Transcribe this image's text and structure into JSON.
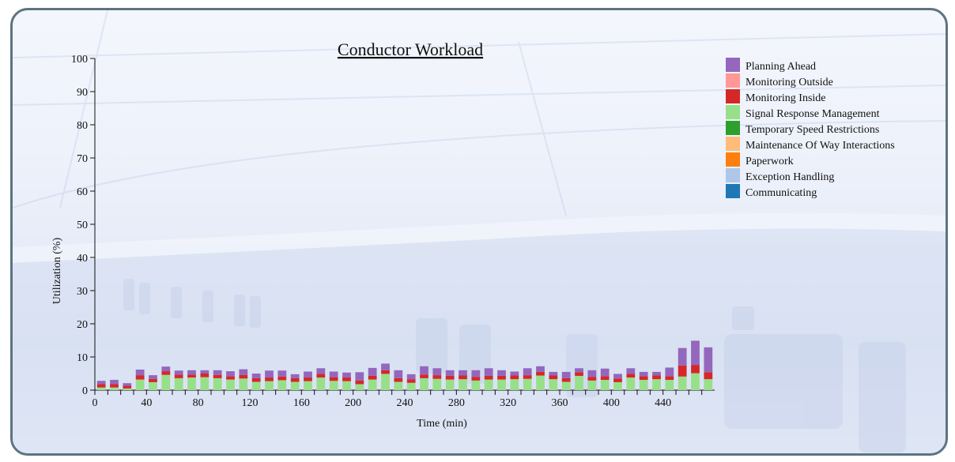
{
  "chart_data": {
    "type": "bar",
    "stacked": true,
    "title": "Conductor Workload",
    "xlabel": "Time (min)",
    "ylabel": "Utilization (%)",
    "ylim": [
      0,
      100
    ],
    "yticks": [
      0,
      10,
      20,
      30,
      40,
      50,
      60,
      70,
      80,
      90,
      100
    ],
    "xlim": [
      0,
      480
    ],
    "xticks": [
      0,
      40,
      80,
      120,
      160,
      200,
      240,
      280,
      320,
      360,
      400,
      440
    ],
    "bin_width_min": 10,
    "legend_position": "top-right",
    "x": [
      5,
      15,
      25,
      35,
      45,
      55,
      65,
      75,
      85,
      95,
      105,
      115,
      125,
      135,
      145,
      155,
      165,
      175,
      185,
      195,
      205,
      215,
      225,
      235,
      245,
      255,
      265,
      275,
      285,
      295,
      305,
      315,
      325,
      335,
      345,
      355,
      365,
      375,
      385,
      395,
      405,
      415,
      425,
      435,
      445,
      455,
      465,
      475
    ],
    "series": [
      {
        "name": "Communicating",
        "color": "#1f77b4",
        "values": [
          0,
          0,
          0,
          0,
          0,
          0,
          0,
          0,
          0,
          0,
          0,
          0,
          0,
          0,
          0,
          0,
          0,
          0,
          0,
          0,
          0,
          0,
          0,
          0,
          0,
          0,
          0,
          0,
          0,
          0,
          0,
          0,
          0,
          0,
          0,
          0,
          0,
          0,
          0,
          0,
          0,
          0,
          0,
          0,
          0,
          0,
          0,
          0
        ]
      },
      {
        "name": "Exception Handling",
        "color": "#aec7e8",
        "values": [
          0,
          0,
          0,
          0,
          0,
          0,
          0,
          0,
          0,
          0,
          0,
          0,
          0,
          0,
          0,
          0,
          0,
          0,
          0,
          0,
          0,
          0,
          0,
          0,
          0,
          0,
          0,
          0,
          0,
          0,
          0,
          0,
          0,
          0,
          0,
          0,
          0,
          0,
          0,
          0,
          0,
          0,
          0,
          0,
          0,
          0,
          0,
          0
        ]
      },
      {
        "name": "Paperwork",
        "color": "#ff7f0e",
        "values": [
          0,
          0,
          0,
          0,
          0,
          0,
          0,
          0,
          0,
          0,
          0,
          0,
          0,
          0,
          0,
          0,
          0,
          0,
          0,
          0,
          0,
          0,
          0,
          0,
          0,
          0,
          0,
          0,
          0,
          0,
          0,
          0,
          0,
          0,
          0,
          0,
          0,
          0,
          0,
          0,
          0,
          0,
          0,
          0,
          0,
          0,
          0,
          0
        ]
      },
      {
        "name": "Maintenance Of Way Interactions",
        "color": "#ffbb78",
        "values": [
          0,
          0,
          0,
          0,
          0,
          0,
          0,
          0,
          0,
          0,
          0,
          0,
          0,
          0,
          0,
          0,
          0,
          0,
          0,
          0,
          0,
          0,
          0,
          0,
          0,
          0,
          0,
          0,
          0,
          0,
          0,
          0,
          0,
          0,
          0,
          0,
          0,
          0,
          0,
          0,
          0,
          0,
          0,
          0,
          0,
          0,
          0,
          0
        ]
      },
      {
        "name": "Temporary Speed Restrictions",
        "color": "#2ca02c",
        "values": [
          0,
          0,
          0,
          0,
          0,
          0,
          0,
          0,
          0,
          0,
          0,
          0,
          0,
          0,
          0,
          0,
          0,
          0,
          0,
          0,
          0,
          0,
          0,
          0,
          0,
          0,
          0,
          0,
          0,
          0,
          0,
          0,
          0,
          0,
          0,
          0,
          0,
          0,
          0,
          0,
          0,
          0,
          0,
          0,
          0,
          0,
          0,
          0
        ]
      },
      {
        "name": "Signal Response Management",
        "color": "#98df8a",
        "values": [
          0.8,
          0.8,
          0.5,
          3.2,
          2.4,
          4.6,
          3.6,
          3.8,
          3.9,
          3.6,
          3.2,
          3.5,
          2.5,
          2.7,
          3.0,
          2.5,
          2.7,
          3.8,
          2.8,
          2.7,
          1.8,
          3.2,
          4.9,
          2.5,
          2.2,
          3.6,
          3.4,
          3.2,
          3.3,
          2.9,
          3.2,
          3.2,
          3.3,
          3.4,
          4.4,
          3.3,
          2.5,
          4.3,
          2.9,
          3.1,
          2.4,
          3.8,
          3.1,
          3.3,
          3.1,
          4.1,
          5.1,
          3.3
        ]
      },
      {
        "name": "Monitoring Inside",
        "color": "#d62728",
        "values": [
          1.0,
          1.0,
          0.8,
          1.3,
          1.0,
          1.1,
          1.1,
          0.9,
          1.1,
          1.0,
          1.0,
          1.1,
          1.1,
          1.1,
          1.1,
          1.1,
          1.1,
          1.1,
          1.1,
          1.1,
          1.1,
          1.1,
          1.1,
          1.1,
          1.1,
          1.1,
          1.1,
          1.1,
          1.1,
          1.1,
          1.1,
          1.1,
          1.1,
          1.1,
          1.1,
          1.1,
          1.1,
          1.1,
          1.1,
          1.1,
          1.1,
          1.1,
          1.1,
          1.1,
          1.1,
          3.3,
          2.5,
          2.1
        ]
      },
      {
        "name": "Monitoring Outside",
        "color": "#ff9896",
        "values": [
          0,
          0,
          0,
          0,
          0,
          0,
          0,
          0,
          0,
          0,
          0,
          0,
          0,
          0,
          0,
          0,
          0,
          0,
          0,
          0,
          0,
          0,
          0,
          0,
          0,
          0,
          0,
          0,
          0,
          0,
          0,
          0,
          0,
          0,
          0,
          0,
          0,
          0,
          0,
          0,
          0,
          0,
          0,
          0,
          0,
          0,
          0,
          0
        ]
      },
      {
        "name": "Planning Ahead",
        "color": "#9467bd",
        "values": [
          1.0,
          1.3,
          0.8,
          1.7,
          1.1,
          1.4,
          1.2,
          1.3,
          1.0,
          1.4,
          1.5,
          1.7,
          1.4,
          2.1,
          1.8,
          1.2,
          1.8,
          1.7,
          1.7,
          1.5,
          2.5,
          2.4,
          2.0,
          2.4,
          1.5,
          2.5,
          2.1,
          1.7,
          1.6,
          2.0,
          2.3,
          1.7,
          1.2,
          2.1,
          1.7,
          1.1,
          1.9,
          1.2,
          2.0,
          2.3,
          1.4,
          1.7,
          1.3,
          1.1,
          2.6,
          5.3,
          7.3,
          7.5
        ]
      }
    ]
  }
}
